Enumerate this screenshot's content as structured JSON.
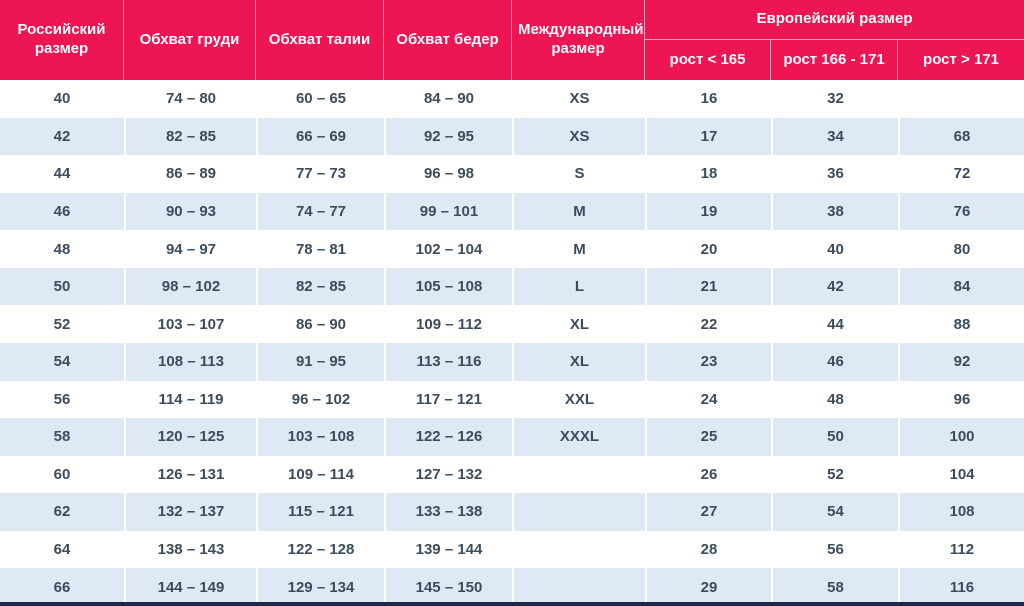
{
  "colors": {
    "accent": "#ED1554",
    "stripe": "#DEE9F5",
    "cell_text": "#3D4C5C",
    "header_text": "#FFFFFF",
    "bottom_edge": "#1C2950"
  },
  "header": {
    "russian_size": "Российский размер",
    "chest": "Обхват груди",
    "waist": "Обхват талии",
    "hips": "Обхват бедер",
    "international_size": "Международный размер",
    "european_size": "Европейский размер",
    "height_lt_165": "рост < 165",
    "height_166_171": "рост 166 - 171",
    "height_gt_171": "рост > 171"
  },
  "chart_data": {
    "type": "table",
    "columns": [
      "Российский размер",
      "Обхват груди",
      "Обхват талии",
      "Обхват бедер",
      "Международный размер",
      "Европейский размер / рост < 165",
      "Европейский размер / рост 166 - 171",
      "Европейский размер / рост > 171"
    ],
    "rows": [
      [
        "40",
        "74 – 80",
        "60 – 65",
        "84 – 90",
        "XS",
        "16",
        "32",
        ""
      ],
      [
        "42",
        "82 – 85",
        "66 – 69",
        "92 – 95",
        "XS",
        "17",
        "34",
        "68"
      ],
      [
        "44",
        "86 – 89",
        "77 – 73",
        "96 – 98",
        "S",
        "18",
        "36",
        "72"
      ],
      [
        "46",
        "90 – 93",
        "74 – 77",
        "99 – 101",
        "M",
        "19",
        "38",
        "76"
      ],
      [
        "48",
        "94 – 97",
        "78 – 81",
        "102 – 104",
        "M",
        "20",
        "40",
        "80"
      ],
      [
        "50",
        "98 – 102",
        "82 – 85",
        "105 – 108",
        "L",
        "21",
        "42",
        "84"
      ],
      [
        "52",
        "103 – 107",
        "86 – 90",
        "109 – 112",
        "XL",
        "22",
        "44",
        "88"
      ],
      [
        "54",
        "108 – 113",
        "91 – 95",
        "113 – 116",
        "XL",
        "23",
        "46",
        "92"
      ],
      [
        "56",
        "114 – 119",
        "96 – 102",
        "117 – 121",
        "XXL",
        "24",
        "48",
        "96"
      ],
      [
        "58",
        "120 – 125",
        "103 – 108",
        "122 – 126",
        "XXXL",
        "25",
        "50",
        "100"
      ],
      [
        "60",
        "126 – 131",
        "109 – 114",
        "127 – 132",
        "",
        "26",
        "52",
        "104"
      ],
      [
        "62",
        "132 – 137",
        "115 – 121",
        "133 – 138",
        "",
        "27",
        "54",
        "108"
      ],
      [
        "64",
        "138 – 143",
        "122 – 128",
        "139 – 144",
        "",
        "28",
        "56",
        "112"
      ],
      [
        "66",
        "144 – 149",
        "129 – 134",
        "145 – 150",
        "",
        "29",
        "58",
        "116"
      ]
    ]
  }
}
